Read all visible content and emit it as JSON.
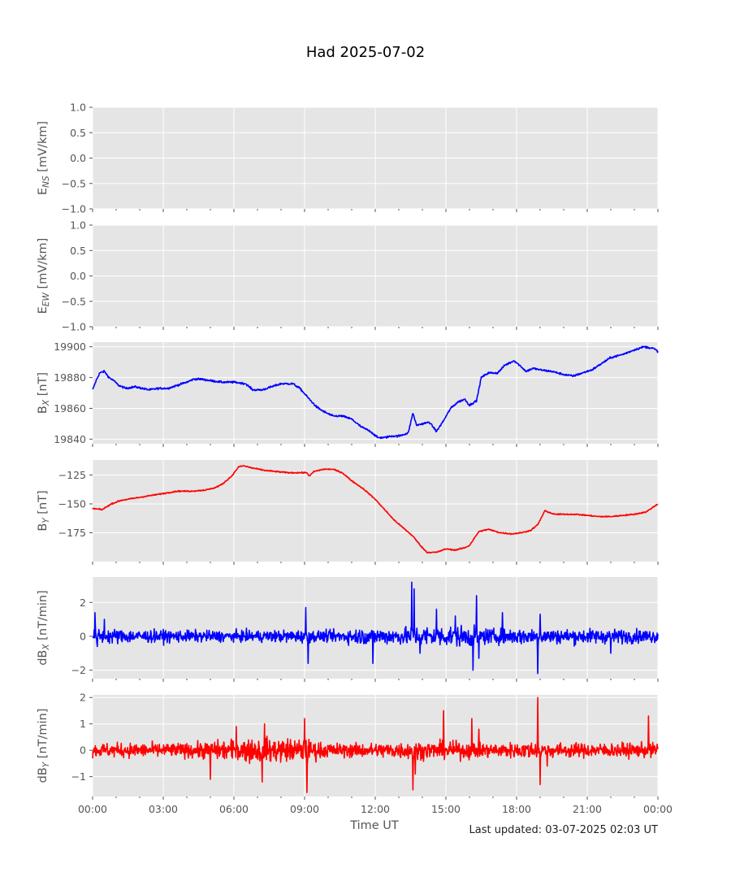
{
  "figure": {
    "title": "Had 2025-07-02",
    "xlabel": "Time UT",
    "footer": "Last updated: 03-07-2025 02:03 UT",
    "x_ticks": [
      "00:00",
      "03:00",
      "06:00",
      "09:00",
      "12:00",
      "15:00",
      "18:00",
      "21:00",
      "00:00"
    ],
    "panel_background": "#e5e5e5",
    "grid_color": "#ffffff"
  },
  "chart_data": [
    {
      "type": "line",
      "panel": "E_NS",
      "ylabel_main": "E",
      "ylabel_sub": "NS",
      "ylabel_unit": " [mV/km]",
      "ylim": [
        -1.0,
        1.0
      ],
      "yticks": [
        -1.0,
        -0.5,
        0.0,
        0.5,
        1.0
      ],
      "ytick_labels": [
        "−1.0",
        "−0.5",
        "0.0",
        "0.5",
        "1.0"
      ],
      "xlim_hours": [
        0,
        24
      ],
      "color": "",
      "points": []
    },
    {
      "type": "line",
      "panel": "E_EW",
      "ylabel_main": "E",
      "ylabel_sub": "EW",
      "ylabel_unit": " [mV/km]",
      "ylim": [
        -1.0,
        1.0
      ],
      "yticks": [
        -1.0,
        -0.5,
        0.0,
        0.5,
        1.0
      ],
      "ytick_labels": [
        "−1.0",
        "−0.5",
        "0.0",
        "0.5",
        "1.0"
      ],
      "xlim_hours": [
        0,
        24
      ],
      "color": "",
      "points": []
    },
    {
      "type": "line",
      "panel": "B_X",
      "ylabel_main": "B",
      "ylabel_sub": "X",
      "ylabel_unit": " [nT]",
      "ylim": [
        19837,
        19903
      ],
      "yticks": [
        19840,
        19860,
        19880,
        19900
      ],
      "ytick_labels": [
        "19840",
        "19860",
        "19880",
        "19900"
      ],
      "xlim_hours": [
        0,
        24
      ],
      "color": "#0000ff",
      "noise": 0.6,
      "points": [
        [
          0,
          19872
        ],
        [
          0.15,
          19878
        ],
        [
          0.3,
          19883
        ],
        [
          0.5,
          19884
        ],
        [
          0.7,
          19880
        ],
        [
          0.9,
          19878
        ],
        [
          1.1,
          19875
        ],
        [
          1.4,
          19873
        ],
        [
          1.8,
          19874
        ],
        [
          2.1,
          19873
        ],
        [
          2.4,
          19872
        ],
        [
          2.8,
          19873
        ],
        [
          3.2,
          19873
        ],
        [
          3.6,
          19875
        ],
        [
          4.0,
          19877
        ],
        [
          4.3,
          19879
        ],
        [
          4.6,
          19879
        ],
        [
          5.0,
          19878
        ],
        [
          5.5,
          19877
        ],
        [
          6.0,
          19877
        ],
        [
          6.5,
          19876
        ],
        [
          6.8,
          19872
        ],
        [
          7.2,
          19872
        ],
        [
          7.6,
          19874
        ],
        [
          8.0,
          19876
        ],
        [
          8.5,
          19876
        ],
        [
          8.8,
          19873
        ],
        [
          9.2,
          19866
        ],
        [
          9.5,
          19861
        ],
        [
          9.8,
          19858
        ],
        [
          10.2,
          19855
        ],
        [
          10.6,
          19855
        ],
        [
          11.0,
          19853
        ],
        [
          11.4,
          19848
        ],
        [
          11.8,
          19845
        ],
        [
          12.1,
          19841
        ],
        [
          12.4,
          19841
        ],
        [
          12.7,
          19842
        ],
        [
          13.0,
          19842
        ],
        [
          13.4,
          19844
        ],
        [
          13.6,
          19857
        ],
        [
          13.75,
          19849
        ],
        [
          14.0,
          19850
        ],
        [
          14.3,
          19851
        ],
        [
          14.6,
          19845
        ],
        [
          14.9,
          19852
        ],
        [
          15.2,
          19860
        ],
        [
          15.5,
          19864
        ],
        [
          15.8,
          19866
        ],
        [
          16.0,
          19862
        ],
        [
          16.3,
          19865
        ],
        [
          16.5,
          19880
        ],
        [
          16.8,
          19883
        ],
        [
          17.2,
          19883
        ],
        [
          17.5,
          19888
        ],
        [
          17.9,
          19891
        ],
        [
          18.2,
          19887
        ],
        [
          18.4,
          19884
        ],
        [
          18.7,
          19886
        ],
        [
          19.0,
          19885
        ],
        [
          19.5,
          19884
        ],
        [
          20.0,
          19882
        ],
        [
          20.4,
          19881
        ],
        [
          20.8,
          19883
        ],
        [
          21.2,
          19885
        ],
        [
          21.6,
          19889
        ],
        [
          22.0,
          19893
        ],
        [
          22.5,
          19895
        ],
        [
          23.0,
          19898
        ],
        [
          23.4,
          19900
        ],
        [
          23.8,
          19899
        ],
        [
          24.0,
          19897
        ]
      ]
    },
    {
      "type": "line",
      "panel": "B_Y",
      "ylabel_main": "B",
      "ylabel_sub": "Y",
      "ylabel_unit": " [nT]",
      "ylim": [
        -200,
        -112
      ],
      "yticks": [
        -175,
        -150,
        -125
      ],
      "ytick_labels": [
        "−175",
        "−150",
        "−125"
      ],
      "xlim_hours": [
        0,
        24
      ],
      "color": "#ff0000",
      "noise": 0.5,
      "points": [
        [
          0,
          -154
        ],
        [
          0.4,
          -155
        ],
        [
          0.8,
          -150
        ],
        [
          1.2,
          -147
        ],
        [
          1.8,
          -145
        ],
        [
          2.4,
          -143
        ],
        [
          3.0,
          -141
        ],
        [
          3.6,
          -139
        ],
        [
          4.2,
          -139
        ],
        [
          4.8,
          -138
        ],
        [
          5.2,
          -136
        ],
        [
          5.5,
          -133
        ],
        [
          5.9,
          -126
        ],
        [
          6.2,
          -118
        ],
        [
          6.4,
          -117
        ],
        [
          6.8,
          -119
        ],
        [
          7.3,
          -121
        ],
        [
          7.8,
          -122
        ],
        [
          8.3,
          -123
        ],
        [
          8.8,
          -123
        ],
        [
          9.1,
          -123
        ],
        [
          9.2,
          -126
        ],
        [
          9.4,
          -122
        ],
        [
          9.8,
          -120
        ],
        [
          10.2,
          -120
        ],
        [
          10.6,
          -123
        ],
        [
          11.0,
          -130
        ],
        [
          11.5,
          -137
        ],
        [
          12.0,
          -146
        ],
        [
          12.4,
          -155
        ],
        [
          12.8,
          -164
        ],
        [
          13.2,
          -171
        ],
        [
          13.6,
          -178
        ],
        [
          13.8,
          -183
        ],
        [
          14.0,
          -188
        ],
        [
          14.2,
          -192
        ],
        [
          14.6,
          -192
        ],
        [
          15.0,
          -189
        ],
        [
          15.4,
          -190
        ],
        [
          15.8,
          -188
        ],
        [
          16.0,
          -186
        ],
        [
          16.4,
          -174
        ],
        [
          16.8,
          -172
        ],
        [
          17.3,
          -175
        ],
        [
          17.8,
          -176
        ],
        [
          18.2,
          -175
        ],
        [
          18.6,
          -173
        ],
        [
          18.9,
          -168
        ],
        [
          19.2,
          -156
        ],
        [
          19.6,
          -159
        ],
        [
          20.0,
          -159
        ],
        [
          20.5,
          -159
        ],
        [
          21.0,
          -160
        ],
        [
          21.5,
          -161
        ],
        [
          22.0,
          -161
        ],
        [
          22.5,
          -160
        ],
        [
          23.0,
          -159
        ],
        [
          23.5,
          -157
        ],
        [
          24.0,
          -150
        ]
      ]
    },
    {
      "type": "line",
      "panel": "dB_X",
      "ylabel_main": "dB",
      "ylabel_sub": "X",
      "ylabel_unit": " [nT/min]",
      "ylim": [
        -2.5,
        3.5
      ],
      "yticks": [
        -2,
        0,
        2
      ],
      "ytick_labels": [
        "−2",
        "0",
        "2"
      ],
      "xlim_hours": [
        0,
        24
      ],
      "color": "#0000ff",
      "noise_profile": [
        [
          0,
          0.45
        ],
        [
          2,
          0.35
        ],
        [
          6,
          0.3
        ],
        [
          9,
          0.35
        ],
        [
          10,
          0.3
        ],
        [
          11.5,
          0.45
        ],
        [
          13,
          0.45
        ],
        [
          14,
          0.55
        ],
        [
          16,
          0.55
        ],
        [
          17,
          0.4
        ],
        [
          18.5,
          0.45
        ],
        [
          19.5,
          0.4
        ],
        [
          21,
          0.4
        ],
        [
          24,
          0.35
        ]
      ],
      "spikes": [
        [
          0.1,
          1.4
        ],
        [
          0.2,
          -0.6
        ],
        [
          0.5,
          1.0
        ],
        [
          9.05,
          1.7
        ],
        [
          9.15,
          -1.6
        ],
        [
          11.9,
          -1.6
        ],
        [
          13.55,
          3.2
        ],
        [
          13.65,
          2.8
        ],
        [
          13.9,
          -1.0
        ],
        [
          14.6,
          1.6
        ],
        [
          15.4,
          1.2
        ],
        [
          16.3,
          2.4
        ],
        [
          16.4,
          -1.3
        ],
        [
          16.15,
          -2.0
        ],
        [
          18.9,
          -2.2
        ],
        [
          19.0,
          1.3
        ],
        [
          17.4,
          1.4
        ],
        [
          22.0,
          -1.0
        ]
      ],
      "points": []
    },
    {
      "type": "line",
      "panel": "dB_Y",
      "ylabel_main": "dB",
      "ylabel_sub": "Y",
      "ylabel_unit": " [nT/min]",
      "ylim": [
        -1.75,
        2.1
      ],
      "yticks": [
        -1,
        0,
        1,
        2
      ],
      "ytick_labels": [
        "−1",
        "0",
        "1",
        "2"
      ],
      "xlim_hours": [
        0,
        24
      ],
      "color": "#ff0000",
      "noise_profile": [
        [
          0,
          0.25
        ],
        [
          4,
          0.25
        ],
        [
          5.5,
          0.35
        ],
        [
          7,
          0.45
        ],
        [
          9,
          0.4
        ],
        [
          10,
          0.25
        ],
        [
          12,
          0.25
        ],
        [
          13,
          0.3
        ],
        [
          14,
          0.3
        ],
        [
          16,
          0.3
        ],
        [
          17,
          0.25
        ],
        [
          19,
          0.3
        ],
        [
          20,
          0.25
        ],
        [
          24,
          0.25
        ]
      ],
      "spikes": [
        [
          5.0,
          -1.1
        ],
        [
          6.1,
          0.9
        ],
        [
          7.2,
          -1.2
        ],
        [
          7.3,
          1.0
        ],
        [
          9.0,
          1.2
        ],
        [
          9.1,
          -1.6
        ],
        [
          13.6,
          -1.5
        ],
        [
          13.7,
          -0.9
        ],
        [
          14.9,
          1.5
        ],
        [
          16.1,
          1.2
        ],
        [
          16.4,
          0.8
        ],
        [
          18.9,
          2.0
        ],
        [
          19.0,
          -1.3
        ],
        [
          19.3,
          -0.6
        ],
        [
          23.6,
          1.3
        ]
      ],
      "points": []
    }
  ]
}
